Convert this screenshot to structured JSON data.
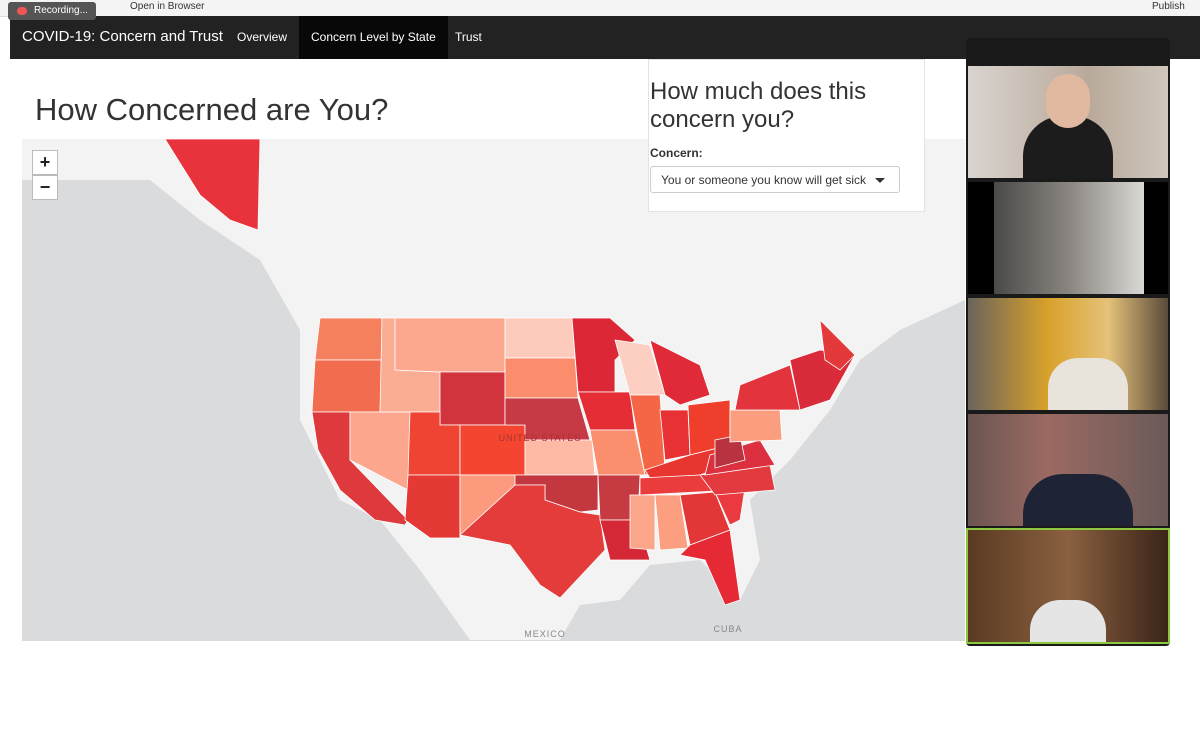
{
  "toolbar": {
    "recording": "Recording...",
    "open_in_browser": "Open in Browser",
    "publish": "Publish"
  },
  "navbar": {
    "brand": "COVID-19: Concern and Trust",
    "tabs": [
      "Overview",
      "Concern Level by State",
      "Trust"
    ],
    "active_tab": 1
  },
  "page": {
    "title": "How Concerned are You?"
  },
  "map": {
    "zoom_in": "+",
    "zoom_out": "−",
    "labels": [
      "UNITED STATES",
      "MEXICO",
      "CUBA"
    ]
  },
  "panel": {
    "title": "How much does this concern you?",
    "input_label": "Concern:",
    "selected": "You or someone you know will get sick"
  }
}
